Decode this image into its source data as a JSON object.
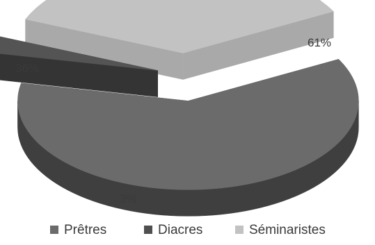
{
  "chart_data": {
    "type": "pie",
    "title": "",
    "style": "3d-exploded",
    "legend_position": "bottom",
    "categories": [
      "Prêtres",
      "Diacres",
      "Séminaristes"
    ],
    "series": [
      {
        "values": [
          61,
          3,
          36
        ],
        "labels": [
          "61%",
          "3%",
          "36%"
        ]
      }
    ],
    "colors": {
      "Prêtres": {
        "top": "#6b6b6b",
        "side": "#3f3f3f",
        "legend": "#6b6b6b"
      },
      "Diacres": {
        "top": "#545454",
        "side": "#343434",
        "legend": "#4f4f4f"
      },
      "Séminaristes": {
        "top": "#c2c2c2",
        "side": "#a9a9a9",
        "legend": "#c2c2c2"
      }
    }
  }
}
